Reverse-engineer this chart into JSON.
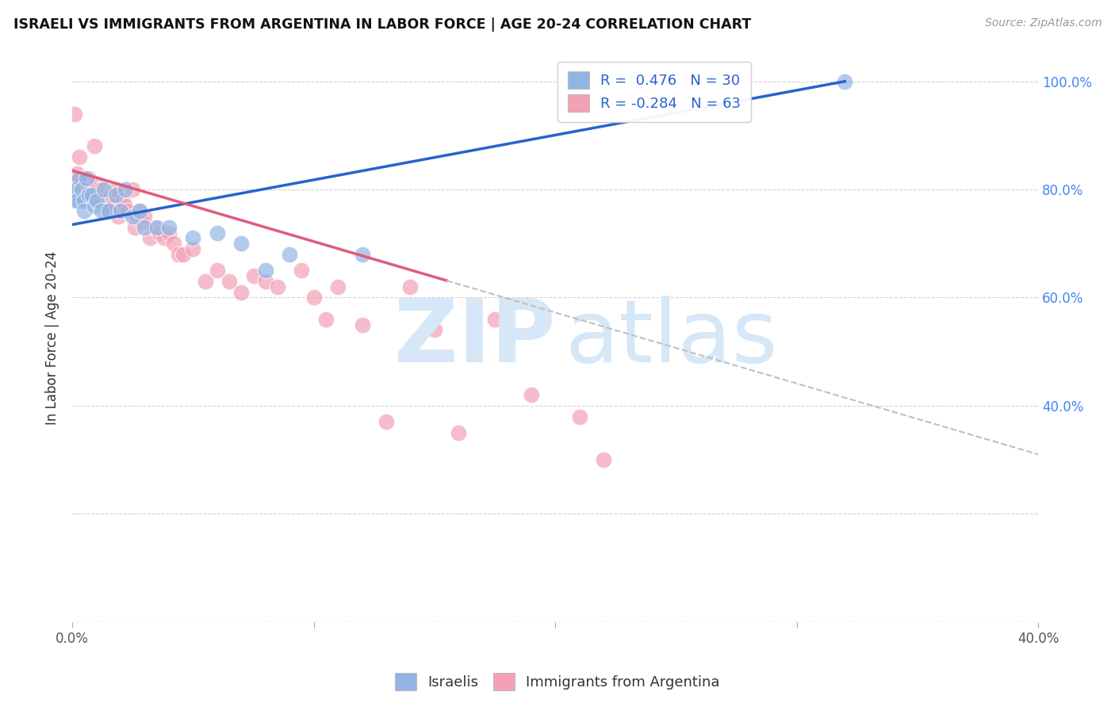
{
  "title": "ISRAELI VS IMMIGRANTS FROM ARGENTINA IN LABOR FORCE | AGE 20-24 CORRELATION CHART",
  "source": "Source: ZipAtlas.com",
  "ylabel": "In Labor Force | Age 20-24",
  "xlim": [
    0.0,
    0.4
  ],
  "ylim": [
    0.0,
    1.05
  ],
  "israelis_color": "#92b4e3",
  "argentina_color": "#f4a0b5",
  "trendline_israeli_color": "#2962cc",
  "trendline_argentina_color": "#e05c7a",
  "watermark_zip_color": "#d6e8f7",
  "watermark_atlas_color": "#d6e8f7",
  "israelis_x": [
    0.0,
    0.0,
    0.002,
    0.003,
    0.004,
    0.005,
    0.005,
    0.006,
    0.007,
    0.008,
    0.009,
    0.01,
    0.012,
    0.013,
    0.015,
    0.018,
    0.02,
    0.022,
    0.025,
    0.028,
    0.03,
    0.035,
    0.04,
    0.05,
    0.06,
    0.07,
    0.08,
    0.09,
    0.12,
    0.32
  ],
  "israelis_y": [
    0.78,
    0.8,
    0.78,
    0.82,
    0.8,
    0.78,
    0.76,
    0.82,
    0.79,
    0.79,
    0.77,
    0.78,
    0.76,
    0.8,
    0.76,
    0.79,
    0.76,
    0.8,
    0.75,
    0.76,
    0.73,
    0.73,
    0.73,
    0.71,
    0.72,
    0.7,
    0.65,
    0.68,
    0.68,
    1.0
  ],
  "argentina_x": [
    0.0,
    0.0,
    0.0,
    0.001,
    0.002,
    0.003,
    0.004,
    0.005,
    0.005,
    0.006,
    0.007,
    0.008,
    0.009,
    0.01,
    0.01,
    0.011,
    0.012,
    0.013,
    0.014,
    0.015,
    0.016,
    0.017,
    0.018,
    0.019,
    0.02,
    0.021,
    0.022,
    0.023,
    0.025,
    0.026,
    0.027,
    0.028,
    0.029,
    0.03,
    0.032,
    0.034,
    0.036,
    0.038,
    0.04,
    0.042,
    0.044,
    0.046,
    0.05,
    0.055,
    0.06,
    0.065,
    0.07,
    0.075,
    0.08,
    0.085,
    0.095,
    0.1,
    0.105,
    0.11,
    0.12,
    0.13,
    0.14,
    0.15,
    0.16,
    0.175,
    0.19,
    0.21,
    0.22
  ],
  "argentina_y": [
    0.8,
    0.81,
    0.82,
    0.94,
    0.83,
    0.86,
    0.78,
    0.8,
    0.78,
    0.81,
    0.82,
    0.79,
    0.88,
    0.81,
    0.8,
    0.78,
    0.8,
    0.79,
    0.76,
    0.77,
    0.79,
    0.77,
    0.8,
    0.75,
    0.76,
    0.78,
    0.77,
    0.76,
    0.8,
    0.73,
    0.75,
    0.76,
    0.74,
    0.75,
    0.71,
    0.73,
    0.72,
    0.71,
    0.72,
    0.7,
    0.68,
    0.68,
    0.69,
    0.63,
    0.65,
    0.63,
    0.61,
    0.64,
    0.63,
    0.62,
    0.65,
    0.6,
    0.56,
    0.62,
    0.55,
    0.37,
    0.62,
    0.54,
    0.35,
    0.56,
    0.42,
    0.38,
    0.3
  ],
  "trendline_israel_x0": 0.0,
  "trendline_israel_x1": 0.32,
  "trendline_israel_y0": 0.735,
  "trendline_israel_y1": 1.0,
  "trendline_arg_x0": 0.0,
  "trendline_arg_x1": 0.4,
  "trendline_arg_y0": 0.835,
  "trendline_arg_y1": 0.31,
  "trendline_arg_solid_end": 0.155,
  "legend_text_1": "R =  0.476   N = 30",
  "legend_text_2": "R = -0.284   N = 63"
}
